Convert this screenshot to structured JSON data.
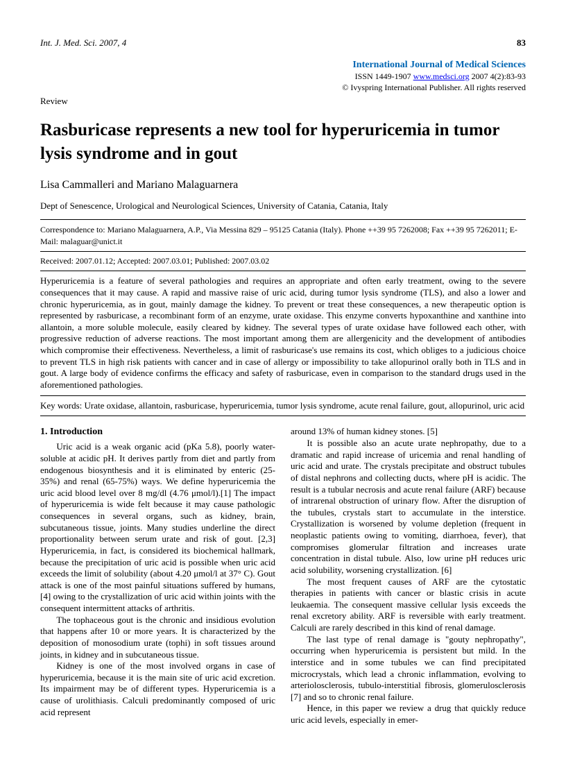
{
  "header": {
    "journal_abbrev": "Int. J. Med. Sci.",
    "year": "2007, 4",
    "page_num": "83"
  },
  "journal": {
    "name": "International Journal of Medical Sciences",
    "issn": "ISSN 1449-1907",
    "url_text": "www.medsci.org",
    "issue": "2007 4(2):83-93",
    "copyright": "© Ivyspring International Publisher. All rights reserved"
  },
  "article_type": "Review",
  "title": "Rasburicase represents a new tool for hyperuricemia in tumor lysis syndrome and in gout",
  "authors": "Lisa Cammalleri and Mariano Malaguarnera",
  "affiliation": "Dept of Senescence, Urological and Neurological Sciences, University of Catania, Catania, Italy",
  "correspondence": "Correspondence to: Mariano Malaguarnera, A.P., Via Messina 829 – 95125 Catania (Italy). Phone ++39 95 7262008; Fax ++39 95 7262011; E-Mail: malaguar@unict.it",
  "dates": "Received: 2007.01.12; Accepted: 2007.03.01; Published: 2007.03.02",
  "abstract": "Hyperuricemia is a feature of several pathologies and requires an appropriate and often early treatment, owing to the severe consequences that it may cause. A rapid and massive raise of uric acid, during tumor lysis syndrome (TLS), and also a lower and chronic hyperuricemia, as in gout, mainly damage the kidney. To prevent or treat these consequences, a new therapeutic option is represented by rasburicase, a recombinant form of an enzyme, urate oxidase. This enzyme converts hypoxanthine and xanthine into allantoin, a more soluble molecule, easily cleared by kidney. The several types of urate oxidase have followed each other, with progressive reduction of adverse reactions. The most important among them are allergenicity and the development of antibodies which compromise their effectiveness. Nevertheless, a limit of rasburicase's use remains its cost, which obliges to a judicious choice to prevent TLS in high risk patients with cancer and in case of allergy or impossibility to take allopurinol orally both in TLS and in gout. A large body of evidence confirms the efficacy and safety of rasburicase, even in comparison to the standard drugs used in the aforementioned pathologies.",
  "keywords": "Key words: Urate oxidase, allantoin, rasburicase, hyperuricemia, tumor lysis syndrome, acute renal failure, gout, allopurinol, uric acid",
  "section_1_head": "1.  Introduction",
  "col_left": {
    "p1": "Uric acid is a weak organic acid (pKa 5.8), poorly water-soluble at acidic pH. It derives partly from diet and partly from endogenous biosynthesis and it is eliminated by enteric (25-35%) and renal (65-75%) ways. We define hyperuricemia the uric acid blood level over 8 mg/dl (4.76 μmol/l).[1] The impact of hyperuricemia is wide felt because it may cause pathologic consequences in several organs, such as kidney, brain, subcutaneous tissue, joints. Many studies underline the direct proportionality between serum urate and risk of gout. [2,3] Hyperuricemia, in fact, is considered its biochemical hallmark, because the precipitation of uric acid is possible when uric acid exceeds the limit of solubility (about 4.20 μmol/l at 37° C). Gout attack is one of the most painful situations suffered by humans, [4] owing to the crystallization of uric acid within joints with the consequent intermittent attacks of arthritis.",
    "p2": "The tophaceous gout is the chronic and insidious evolution that happens after 10 or more years. It is characterized by the deposition of monosodium urate (tophi) in soft tissues around joints, in kidney and in subcutaneous tissue.",
    "p3": "Kidney is one of the most involved organs in case of hyperuricemia, because it is the main site of uric acid excretion. Its impairment may be of different types. Hyperuricemia is a cause of urolithiasis. Calculi predominantly composed of uric acid represent"
  },
  "col_right": {
    "p1": "around 13% of human kidney stones. [5]",
    "p2": "It is possible also an acute urate nephropathy, due to a dramatic and rapid increase of uricemia and renal handling of uric acid and urate. The crystals precipitate and obstruct tubules of distal nephrons and collecting ducts, where pH is acidic. The result is a tubular necrosis and acute renal failure (ARF) because of intrarenal obstruction of urinary flow. After the disruption of the tubules, crystals start to accumulate in the interstice. Crystallization is worsened by volume depletion (frequent in neoplastic patients owing to vomiting, diarrhoea, fever), that compromises glomerular filtration and increases urate concentration in distal tubule. Also, low urine pH reduces uric acid solubility, worsening crystallization. [6]",
    "p3": "The most frequent causes of ARF are the cytostatic therapies in patients with cancer or blastic crisis in acute leukaemia. The consequent massive cellular lysis exceeds the renal excretory ability. ARF is reversible with early treatment. Calculi are rarely described in this kind of renal damage.",
    "p4": "The last type of renal damage is \"gouty nephropathy\", occurring when hyperuricemia is persistent but mild. In the interstice and in some tubules we can find precipitated microcrystals, which lead a chronic inflammation, evolving to arteriolosclerosis, tubulo-interstitial fibrosis, glomerulosclerosis [7] and so to chronic renal failure.",
    "p5": "Hence, in this paper we review a drug that quickly reduce uric acid levels, especially in emer-"
  },
  "colors": {
    "journal_name": "#0066b3",
    "link": "#0000ee",
    "text": "#000000",
    "background": "#ffffff"
  },
  "fonts": {
    "body_family": "Book Antiqua / Palatino",
    "title_size_pt": 19,
    "body_size_pt": 10,
    "authors_size_pt": 12
  }
}
